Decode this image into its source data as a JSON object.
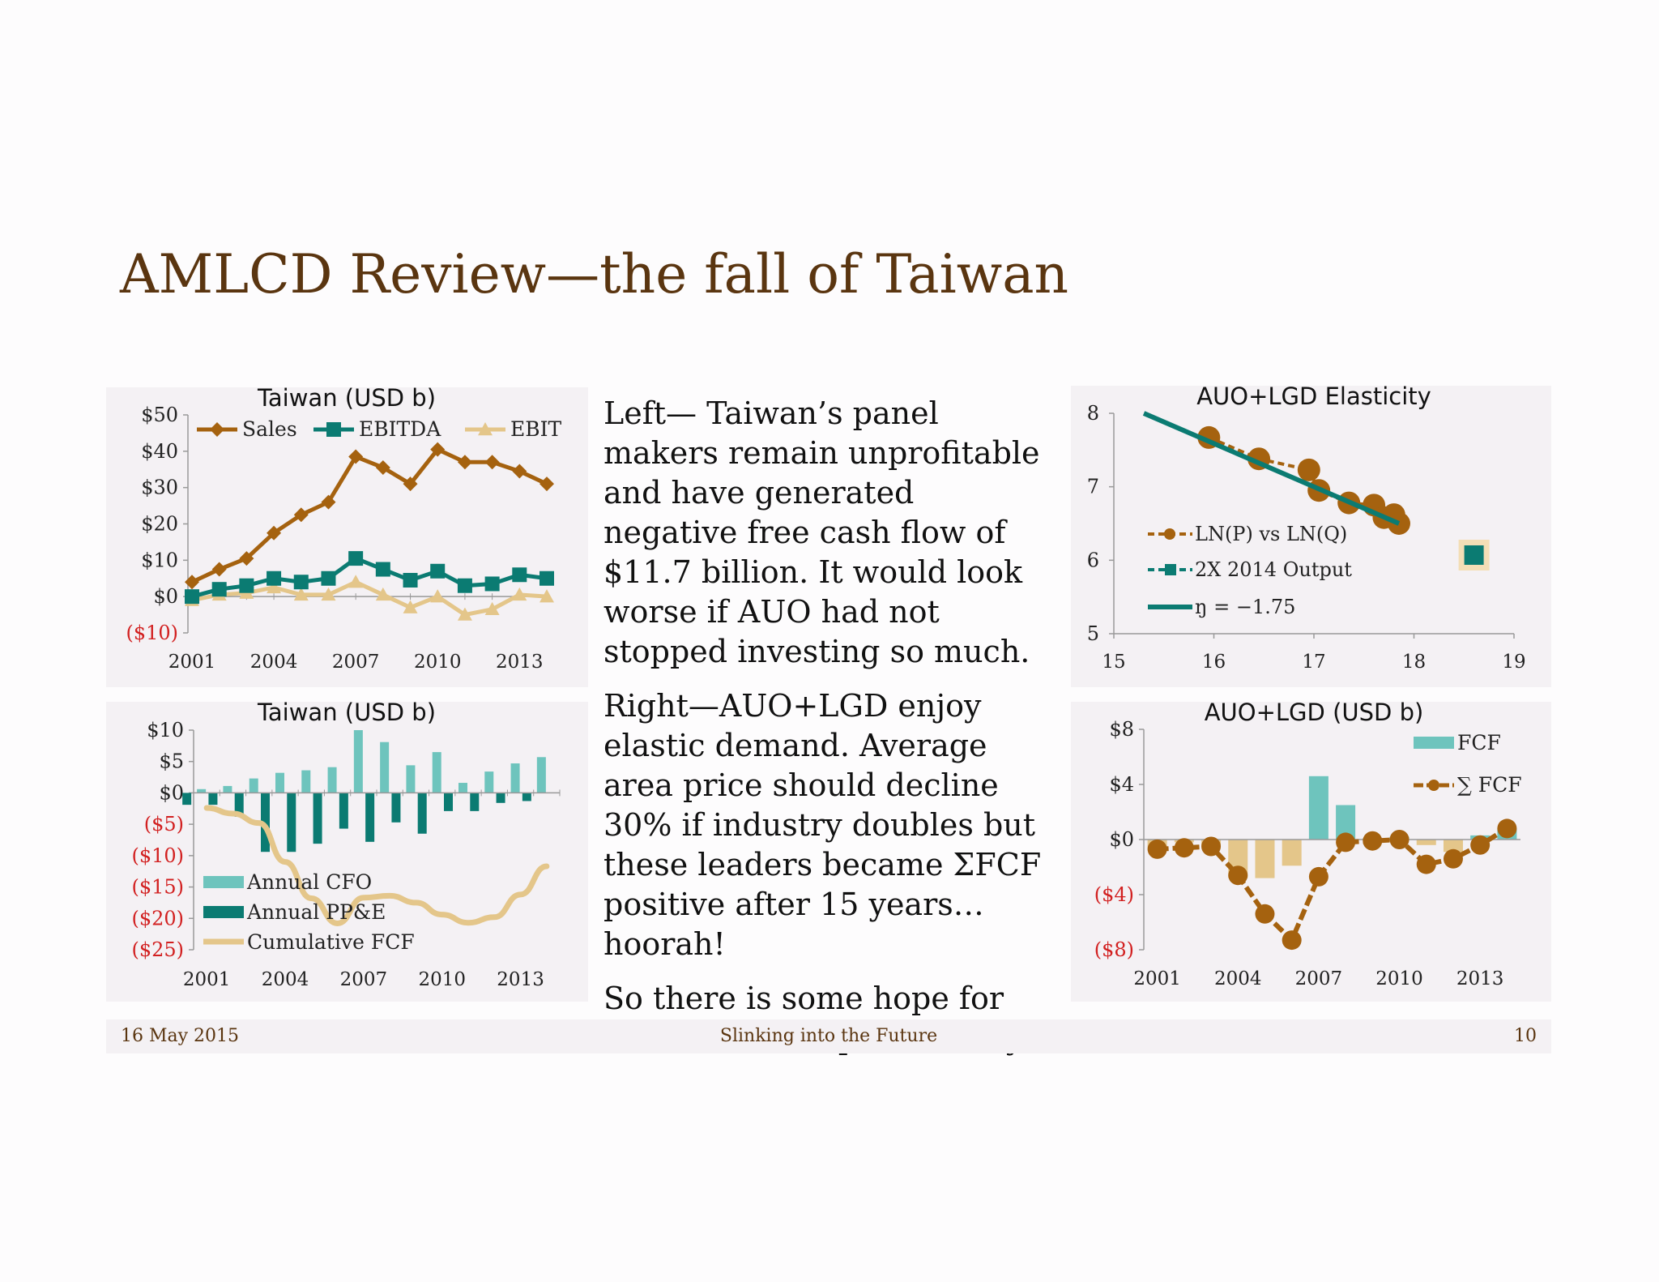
{
  "slide": {
    "title": "AMLCD Review—the fall of Taiwan",
    "paragraphs": [
      "Left— Taiwan’s panel makers remain unprofitable and have generated negative free cash flow of $11.7 billion. It would look worse if AUO had not stopped investing so much.",
      "Right—AUO+LGD enjoy elastic demand. Average area price should decline 30% if industry doubles but these leaders became ΣFCF positive after 15 years… hoorah!",
      "So there is some hope for leaders who expand slowly."
    ]
  },
  "footer": {
    "date": "16 May 2015",
    "center": "Slinking into the Future",
    "page": "10"
  },
  "colors": {
    "brown": "#a5620f",
    "teal": "#0b7b72",
    "light_teal": "#6ec4bd",
    "tan": "#e4c68a",
    "negative_label": "#d22020",
    "title": "#5a3510"
  },
  "chart_data": [
    {
      "id": "taiwan-income",
      "type": "line",
      "title": "Taiwan (USD b)",
      "x": [
        2001,
        2002,
        2003,
        2004,
        2005,
        2006,
        2007,
        2008,
        2009,
        2010,
        2011,
        2012,
        2013,
        2014
      ],
      "x_ticks": [
        "2001",
        "2004",
        "2007",
        "2010",
        "2013"
      ],
      "y_ticks": [
        "$50",
        "$40",
        "$30",
        "$20",
        "$10",
        "$0",
        "($10)"
      ],
      "ylim": [
        -10,
        50
      ],
      "legend_position": "top",
      "series": [
        {
          "name": "Sales",
          "marker": "diamond",
          "color": "#a5620f",
          "values": [
            4,
            7.5,
            10.5,
            17.5,
            22.5,
            26,
            38.5,
            35.5,
            31,
            40.5,
            37,
            37,
            34.5,
            31
          ]
        },
        {
          "name": "EBITDA",
          "marker": "square",
          "color": "#0b7b72",
          "values": [
            0,
            2,
            3,
            5,
            4,
            5,
            10.5,
            7.5,
            4.5,
            7,
            3,
            3.5,
            6,
            5
          ]
        },
        {
          "name": "EBIT",
          "marker": "triangle",
          "color": "#e4c68a",
          "values": [
            -1,
            0.5,
            1,
            2.5,
            0.5,
            0.5,
            4,
            0.5,
            -3,
            0,
            -5,
            -3.5,
            0.5,
            0
          ]
        }
      ]
    },
    {
      "id": "taiwan-cashflow",
      "type": "bar",
      "title": "Taiwan (USD b)",
      "x": [
        2001,
        2002,
        2003,
        2004,
        2005,
        2006,
        2007,
        2008,
        2009,
        2010,
        2011,
        2012,
        2013,
        2014
      ],
      "x_ticks": [
        "2001",
        "2004",
        "2007",
        "2010",
        "2013"
      ],
      "y_ticks": [
        "$10",
        "$5",
        "$0",
        "($5)",
        "($10)",
        "($15)",
        "($20)",
        "($25)"
      ],
      "ylim": [
        -25,
        10
      ],
      "legend_position": "bottom-left",
      "series": [
        {
          "name": "Annual CFO",
          "kind": "bar",
          "color": "#6ec4bd",
          "values": [
            0.6,
            1.1,
            2.3,
            3.2,
            3.6,
            4.1,
            10,
            8.1,
            4.4,
            6.5,
            1.6,
            3.4,
            4.7,
            5.7
          ]
        },
        {
          "name": "Annual PP&E",
          "kind": "bar",
          "color": "#0b7b72",
          "values": [
            -1.9,
            -1.9,
            -3.8,
            -9.4,
            -9.4,
            -8.1,
            -5.7,
            -7.8,
            -4.7,
            -6.5,
            -2.9,
            -2.9,
            -1.6,
            -1.3
          ]
        },
        {
          "name": "Cumulative FCF",
          "kind": "line",
          "color": "#e4c68a",
          "values": [
            -2.4,
            -3.3,
            -4.8,
            -11,
            -16.8,
            -20.8,
            -16.7,
            -16.4,
            -17.5,
            -19.4,
            -20.7,
            -19.8,
            -16.2,
            -11.7
          ]
        }
      ]
    },
    {
      "id": "elasticity",
      "type": "scatter",
      "title": "AUO+LGD Elasticity",
      "xlim": [
        15,
        19
      ],
      "ylim": [
        5,
        8
      ],
      "x_ticks": [
        "15",
        "16",
        "17",
        "18",
        "19"
      ],
      "y_ticks": [
        "8",
        "7",
        "6",
        "5"
      ],
      "legend_position": "left",
      "series": [
        {
          "name": "LN(P) vs LN(Q)",
          "color": "#a5620f",
          "points": [
            [
              15.95,
              7.67
            ],
            [
              16.45,
              7.38
            ],
            [
              16.95,
              7.23
            ],
            [
              17.05,
              6.95
            ],
            [
              17.35,
              6.78
            ],
            [
              17.6,
              6.75
            ],
            [
              17.7,
              6.58
            ],
            [
              17.8,
              6.62
            ],
            [
              17.85,
              6.5
            ]
          ]
        },
        {
          "name": "2X 2014 Output",
          "color": "#0b7b72",
          "points": [
            [
              18.6,
              6.07
            ]
          ]
        },
        {
          "name": "ŋ = −1.75",
          "color": "#0b7b72",
          "line": [
            [
              15.3,
              8.0
            ],
            [
              17.85,
              6.5
            ]
          ]
        }
      ]
    },
    {
      "id": "auo-lgd-fcf",
      "type": "bar",
      "title": "AUO+LGD (USD b)",
      "x": [
        2001,
        2002,
        2003,
        2004,
        2005,
        2006,
        2007,
        2008,
        2009,
        2010,
        2011,
        2012,
        2013,
        2014
      ],
      "x_ticks": [
        "2001",
        "2004",
        "2007",
        "2010",
        "2013"
      ],
      "y_ticks": [
        "$8",
        "$4",
        "$0",
        "($4)",
        "($8)"
      ],
      "ylim": [
        -8,
        8
      ],
      "legend_position": "top-right",
      "series": [
        {
          "name": "FCF",
          "kind": "bar",
          "light_color": "#e4c68a",
          "color": "#6ec4bd",
          "values": [
            -0.6,
            -0.2,
            -0.5,
            -2.8,
            -2.8,
            -1.9,
            4.6,
            2.5,
            0.1,
            0.2,
            -0.4,
            -0.9,
            0.3,
            0.8
          ]
        },
        {
          "name": "∑ FCF",
          "kind": "line",
          "color": "#a5620f",
          "values": [
            -0.7,
            -0.6,
            -0.5,
            -2.6,
            -5.4,
            -7.3,
            -2.7,
            -0.2,
            -0.1,
            0,
            -1.8,
            -1.4,
            -0.4,
            0.8
          ]
        }
      ]
    }
  ]
}
